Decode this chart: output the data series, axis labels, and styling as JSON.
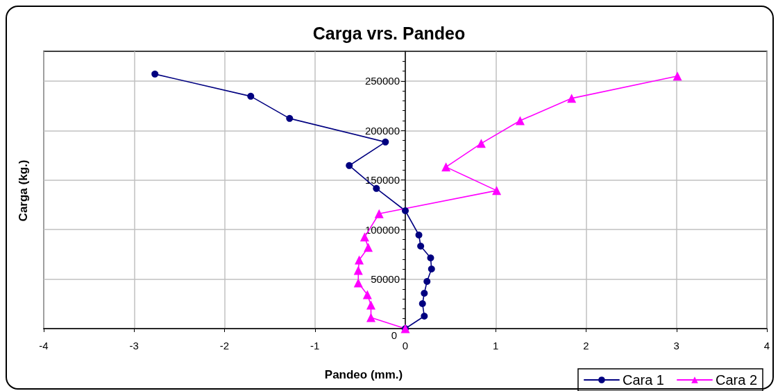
{
  "chart_data": {
    "type": "line",
    "title": "Carga vrs. Pandeo",
    "xlabel": "Pandeo (mm.)",
    "ylabel": "Carga (kg.)",
    "xlim": [
      -4,
      4
    ],
    "xticks": [
      -4,
      -3,
      -2,
      -1,
      0,
      1,
      2,
      3,
      4
    ],
    "ylim": [
      0,
      280000
    ],
    "yticks": [
      0,
      50000,
      100000,
      150000,
      200000,
      250000
    ],
    "grid": true,
    "legend": "bottom right",
    "line_style": "solid",
    "series": [
      {
        "name": "Cara 1",
        "color": "#000080",
        "marker": "circle",
        "x": [
          0,
          0.21,
          0.19,
          0.21,
          0.24,
          0.29,
          0.28,
          0.17,
          0.15,
          0,
          -0.32,
          -0.62,
          -0.22,
          -1.28,
          -1.71,
          -2.77
        ],
        "values": [
          0,
          12600,
          25200,
          35700,
          47600,
          60200,
          71400,
          83300,
          94500,
          119000,
          141500,
          164600,
          188400,
          212200,
          234600,
          257000
        ]
      },
      {
        "name": "Cara 2",
        "color": "#ff00ff",
        "marker": "triangle",
        "x": [
          0,
          -0.38,
          -0.38,
          -0.42,
          -0.52,
          -0.52,
          -0.51,
          -0.41,
          -0.45,
          -0.29,
          1.01,
          0.45,
          0.84,
          1.27,
          1.84,
          3.01
        ],
        "values": [
          0,
          11200,
          23800,
          34300,
          46200,
          58800,
          69300,
          82000,
          92500,
          116000,
          139400,
          163200,
          187000,
          210000,
          232500,
          255000
        ]
      }
    ]
  }
}
